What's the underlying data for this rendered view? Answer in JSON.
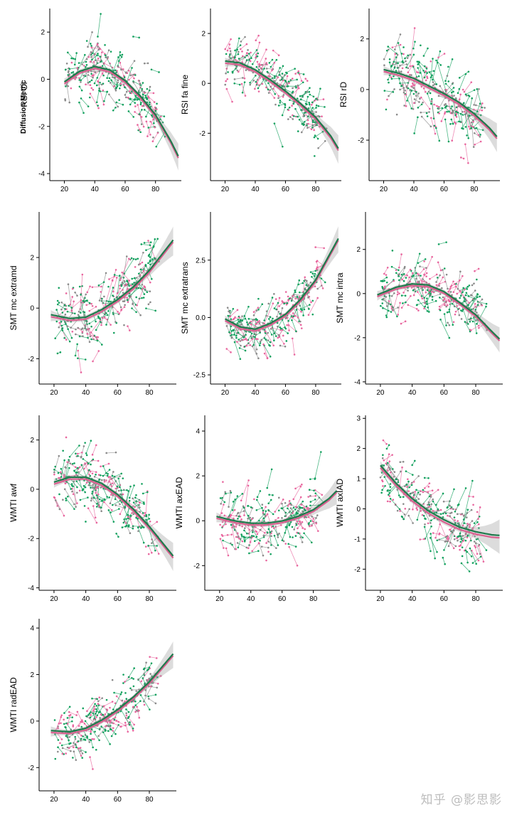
{
  "figure": {
    "facet_label": "Diffusion Metric",
    "watermark": "知乎 @影思影"
  },
  "colors": {
    "pink": "#e8669e",
    "green": "#13a05e",
    "grey": "#8a8a8a",
    "fit_pink": "#d9608f",
    "fit_green": "#1f7a4c"
  },
  "chart_data": [
    {
      "type": "scatter",
      "ylabel": "RSI CI",
      "x_ticks": [
        20,
        40,
        60,
        80
      ],
      "xlim": [
        16,
        97
      ],
      "y_ticks": [
        -4,
        -2,
        0,
        2
      ],
      "ylim": [
        -4.3,
        3.0
      ],
      "fit": {
        "x": [
          20,
          30,
          40,
          50,
          60,
          70,
          80,
          90,
          95
        ],
        "y": [
          -0.15,
          0.3,
          0.5,
          0.35,
          -0.1,
          -0.75,
          -1.55,
          -2.65,
          -3.3
        ]
      },
      "scatter_center": {
        "x": [
          20,
          30,
          40,
          50,
          60,
          70,
          80
        ],
        "y": [
          0.0,
          0.4,
          0.5,
          0.3,
          -0.1,
          -0.8,
          -1.5
        ]
      },
      "noise": 0.8
    },
    {
      "type": "scatter",
      "ylabel": "RSI fa fine",
      "x_ticks": [
        20,
        40,
        60,
        80
      ],
      "xlim": [
        16,
        97
      ],
      "y_ticks": [
        -2,
        0,
        2
      ],
      "ylim": [
        -3.9,
        3.0
      ],
      "fit": {
        "x": [
          20,
          30,
          40,
          50,
          60,
          70,
          80,
          90,
          95
        ],
        "y": [
          0.85,
          0.78,
          0.5,
          0.1,
          -0.35,
          -0.85,
          -1.4,
          -2.15,
          -2.65
        ]
      },
      "scatter_center": {
        "x": [
          20,
          30,
          40,
          50,
          60,
          70,
          80
        ],
        "y": [
          0.9,
          0.85,
          0.5,
          0.1,
          -0.4,
          -0.9,
          -1.5
        ]
      },
      "noise": 0.7
    },
    {
      "type": "scatter",
      "ylabel": "RSI rD",
      "x_ticks": [
        20,
        40,
        60,
        80
      ],
      "xlim": [
        16,
        97
      ],
      "y_ticks": [
        -2,
        0,
        2
      ],
      "ylim": [
        -3.6,
        3.2
      ],
      "fit": {
        "x": [
          20,
          30,
          40,
          50,
          60,
          70,
          80,
          90,
          95
        ],
        "y": [
          0.75,
          0.6,
          0.4,
          0.1,
          -0.2,
          -0.55,
          -1.0,
          -1.55,
          -1.9
        ]
      },
      "scatter_center": {
        "x": [
          20,
          30,
          40,
          50,
          60,
          70,
          80
        ],
        "y": [
          0.8,
          0.6,
          0.4,
          0.1,
          -0.2,
          -0.6,
          -1.1
        ]
      },
      "noise": 0.9
    },
    {
      "type": "scatter",
      "ylabel": "SMT mc extramd",
      "x_ticks": [
        20,
        40,
        60,
        80
      ],
      "xlim": [
        16,
        97
      ],
      "y_ticks": [
        -2,
        0,
        2
      ],
      "ylim": [
        -3.0,
        3.8
      ],
      "fit": {
        "x": [
          18,
          30,
          40,
          50,
          60,
          70,
          80,
          90,
          95
        ],
        "y": [
          -0.3,
          -0.45,
          -0.4,
          -0.1,
          0.3,
          0.8,
          1.45,
          2.25,
          2.65
        ]
      },
      "scatter_center": {
        "x": [
          20,
          30,
          40,
          50,
          60,
          70,
          80
        ],
        "y": [
          -0.3,
          -0.45,
          -0.35,
          -0.05,
          0.4,
          0.9,
          1.5
        ]
      },
      "noise": 0.8
    },
    {
      "type": "scatter",
      "ylabel": "SMT mc extratrans",
      "x_ticks": [
        20,
        40,
        60,
        80
      ],
      "xlim": [
        16,
        97
      ],
      "y_ticks": [
        -2.5,
        0.0,
        2.5
      ],
      "ylim": [
        -2.9,
        4.6
      ],
      "fit": {
        "x": [
          20,
          30,
          40,
          50,
          60,
          70,
          80,
          90,
          95
        ],
        "y": [
          -0.1,
          -0.45,
          -0.55,
          -0.3,
          0.1,
          0.75,
          1.6,
          2.8,
          3.4
        ]
      },
      "scatter_center": {
        "x": [
          20,
          30,
          40,
          50,
          60,
          70,
          80
        ],
        "y": [
          -0.2,
          -0.5,
          -0.55,
          -0.25,
          0.2,
          0.8,
          1.7
        ]
      },
      "noise": 0.7
    },
    {
      "type": "scatter",
      "ylabel": "SMT mc intra",
      "x_ticks": [
        20,
        40,
        60,
        80
      ],
      "xlim": [
        16,
        97
      ],
      "y_ticks": [
        -4,
        -2,
        0,
        2
      ],
      "ylim": [
        -4.1,
        3.7
      ],
      "fit": {
        "x": [
          18,
          30,
          40,
          50,
          60,
          70,
          80,
          90,
          95
        ],
        "y": [
          -0.1,
          0.25,
          0.4,
          0.35,
          0.05,
          -0.45,
          -1.0,
          -1.75,
          -2.1
        ]
      },
      "scatter_center": {
        "x": [
          20,
          30,
          40,
          50,
          60,
          70,
          80
        ],
        "y": [
          -0.1,
          0.3,
          0.4,
          0.3,
          0.0,
          -0.5,
          -1.0
        ]
      },
      "noise": 0.8
    },
    {
      "type": "scatter",
      "ylabel": "WMTI awf",
      "x_ticks": [
        20,
        40,
        60,
        80
      ],
      "xlim": [
        16,
        97
      ],
      "y_ticks": [
        -4,
        -2,
        0,
        2
      ],
      "ylim": [
        -4.1,
        3.0
      ],
      "fit": {
        "x": [
          20,
          30,
          40,
          50,
          60,
          70,
          80,
          90,
          95
        ],
        "y": [
          0.25,
          0.45,
          0.45,
          0.2,
          -0.25,
          -0.85,
          -1.55,
          -2.35,
          -2.75
        ]
      },
      "scatter_center": {
        "x": [
          20,
          30,
          40,
          50,
          60,
          70,
          80
        ],
        "y": [
          0.4,
          0.5,
          0.45,
          0.2,
          -0.3,
          -0.9,
          -1.6
        ]
      },
      "noise": 0.8
    },
    {
      "type": "scatter",
      "ylabel": "WMTI axEAD",
      "x_ticks": [
        20,
        40,
        60,
        80
      ],
      "xlim": [
        16,
        97
      ],
      "y_ticks": [
        -2,
        0,
        2,
        4
      ],
      "ylim": [
        -3.1,
        4.7
      ],
      "fit": {
        "x": [
          18,
          30,
          40,
          50,
          60,
          70,
          80,
          90,
          95
        ],
        "y": [
          0.15,
          -0.05,
          -0.15,
          -0.15,
          -0.05,
          0.15,
          0.45,
          0.95,
          1.3
        ]
      },
      "scatter_center": {
        "x": [
          20,
          30,
          40,
          50,
          60,
          70,
          80
        ],
        "y": [
          0.1,
          -0.05,
          -0.15,
          -0.1,
          0.0,
          0.2,
          0.5
        ]
      },
      "noise": 0.8
    },
    {
      "type": "scatter",
      "ylabel": "WMTI axIAD",
      "x_ticks": [
        20,
        40,
        60,
        80
      ],
      "xlim": [
        16,
        97
      ],
      "y_ticks": [
        -2,
        -1,
        0,
        1,
        2,
        3
      ],
      "ylim": [
        -2.7,
        3.1
      ],
      "fit": {
        "x": [
          20,
          30,
          40,
          50,
          60,
          70,
          80,
          90,
          95
        ],
        "y": [
          1.4,
          0.8,
          0.3,
          -0.1,
          -0.4,
          -0.65,
          -0.8,
          -0.9,
          -0.92
        ]
      },
      "scatter_center": {
        "x": [
          20,
          30,
          40,
          50,
          60,
          70,
          80
        ],
        "y": [
          1.3,
          0.8,
          0.3,
          -0.1,
          -0.4,
          -0.7,
          -0.9
        ]
      },
      "noise": 0.6
    },
    {
      "type": "scatter",
      "ylabel": "WMTI radEAD",
      "x_ticks": [
        20,
        40,
        60,
        80
      ],
      "xlim": [
        16,
        97
      ],
      "y_ticks": [
        -2,
        0,
        2,
        4
      ],
      "ylim": [
        -3.0,
        4.4
      ],
      "fit": {
        "x": [
          18,
          30,
          40,
          50,
          60,
          70,
          80,
          90,
          95
        ],
        "y": [
          -0.45,
          -0.5,
          -0.35,
          0.0,
          0.45,
          1.0,
          1.65,
          2.45,
          2.85
        ]
      },
      "scatter_center": {
        "x": [
          20,
          30,
          40,
          50,
          60,
          70,
          80
        ],
        "y": [
          -0.4,
          -0.5,
          -0.3,
          0.05,
          0.5,
          1.05,
          1.7
        ]
      },
      "noise": 0.7
    }
  ]
}
